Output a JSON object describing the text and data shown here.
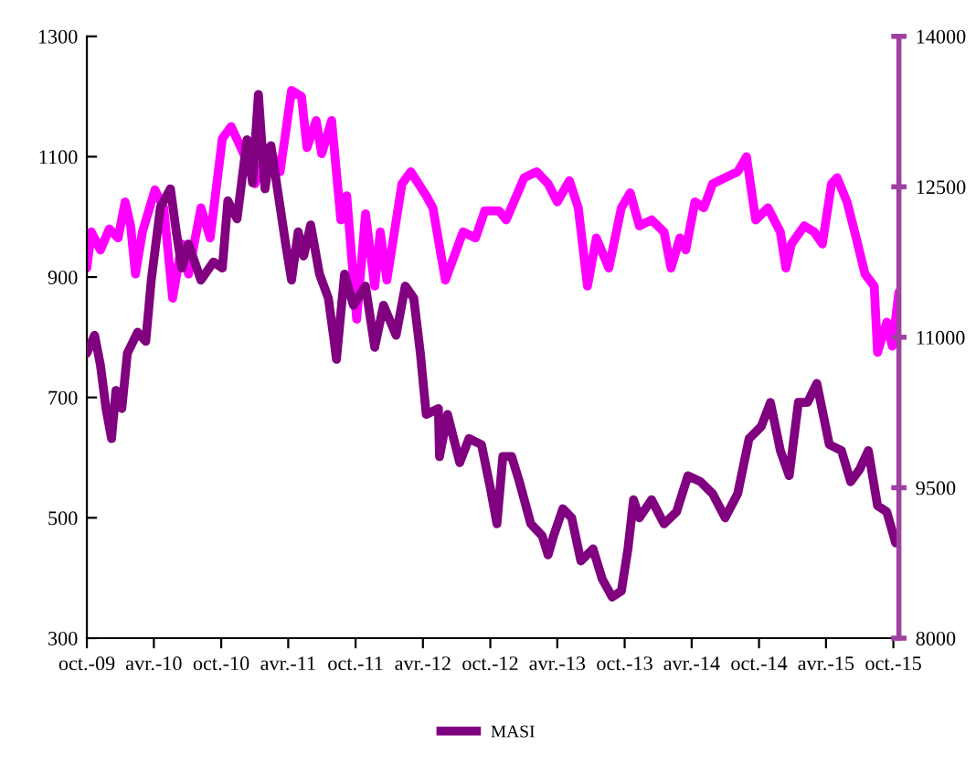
{
  "chart_data": {
    "type": "line",
    "xlim": [
      "2009-10-01",
      "2015-10-16"
    ],
    "xticks": [
      {
        "value": "2009-10-01",
        "label": "oct.-09"
      },
      {
        "value": "2010-04-01",
        "label": "avr.-10"
      },
      {
        "value": "2010-10-01",
        "label": "oct.-10"
      },
      {
        "value": "2011-04-01",
        "label": "avr.-11"
      },
      {
        "value": "2011-10-01",
        "label": "oct.-11"
      },
      {
        "value": "2012-04-01",
        "label": "avr.-12"
      },
      {
        "value": "2012-10-01",
        "label": "oct.-12"
      },
      {
        "value": "2013-04-01",
        "label": "avr.-13"
      },
      {
        "value": "2013-10-01",
        "label": "oct.-13"
      },
      {
        "value": "2014-04-01",
        "label": "avr.-14"
      },
      {
        "value": "2014-10-01",
        "label": "oct.-14"
      },
      {
        "value": "2015-04-01",
        "label": "avr.-15"
      },
      {
        "value": "2015-10-01",
        "label": "oct.-15"
      }
    ],
    "ylim": [
      300,
      1300
    ],
    "yticks": [
      300,
      500,
      700,
      900,
      1100,
      1300
    ],
    "y2lim": [
      8000,
      14000
    ],
    "y2ticks": [
      8000,
      9500,
      11000,
      12500,
      14000
    ],
    "grid": false,
    "legend": "bottom",
    "marker": "none",
    "line_style": "solid",
    "series": [
      {
        "color": "#ff00ff",
        "x": [
          "2009-10-01",
          "2009-10-13",
          "2009-11-07",
          "2009-12-01",
          "2009-12-25",
          "2010-01-13",
          "2010-01-28",
          "2010-02-10",
          "2010-03-01",
          "2010-04-04",
          "2010-04-28",
          "2010-05-22",
          "2010-06-16",
          "2010-07-04",
          "2010-08-07",
          "2010-09-01",
          "2010-10-04",
          "2010-10-28",
          "2010-12-01",
          "2011-01-01",
          "2011-02-07",
          "2011-03-10",
          "2011-04-10",
          "2011-05-07",
          "2011-05-22",
          "2011-06-16",
          "2011-07-01",
          "2011-07-28",
          "2011-08-22",
          "2011-09-07",
          "2011-10-04",
          "2011-10-28",
          "2011-11-22",
          "2011-12-07",
          "2011-12-25",
          "2012-02-04",
          "2012-02-28",
          "2012-04-10",
          "2012-04-28",
          "2012-06-01",
          "2012-06-25",
          "2012-07-19",
          "2012-08-22",
          "2012-09-16",
          "2012-10-25",
          "2012-11-13",
          "2013-01-01",
          "2013-02-04",
          "2013-03-07",
          "2013-04-01",
          "2013-05-04",
          "2013-05-28",
          "2013-06-22",
          "2013-07-16",
          "2013-08-19",
          "2013-09-22",
          "2013-10-16",
          "2013-11-10",
          "2013-12-13",
          "2014-01-16",
          "2014-02-04",
          "2014-02-28",
          "2014-03-16",
          "2014-04-10",
          "2014-05-04",
          "2014-05-28",
          "2014-07-01",
          "2014-08-04",
          "2014-08-28",
          "2014-09-22",
          "2014-10-25",
          "2014-11-28",
          "2014-12-13",
          "2014-12-28",
          "2015-02-01",
          "2015-02-28",
          "2015-03-22",
          "2015-04-16",
          "2015-05-01",
          "2015-05-28",
          "2015-06-22",
          "2015-07-16",
          "2015-08-10",
          "2015-08-19",
          "2015-09-13",
          "2015-09-28",
          "2015-10-16"
        ],
        "values": [
          915,
          975,
          945,
          980,
          965,
          1025,
          985,
          905,
          975,
          1045,
          1015,
          865,
          955,
          905,
          1015,
          965,
          1130,
          1150,
          1105,
          1055,
          1115,
          1075,
          1210,
          1200,
          1115,
          1160,
          1105,
          1160,
          995,
          1035,
          830,
          1005,
          885,
          975,
          895,
          1055,
          1075,
          1035,
          1015,
          895,
          935,
          975,
          965,
          1010,
          1010,
          995,
          1065,
          1075,
          1055,
          1025,
          1060,
          1015,
          885,
          965,
          915,
          1015,
          1040,
          985,
          995,
          975,
          915,
          965,
          945,
          1025,
          1015,
          1055,
          1065,
          1075,
          1100,
          995,
          1015,
          975,
          915,
          955,
          985,
          975,
          955,
          1055,
          1065,
          1025,
          965,
          905,
          885,
          775,
          825,
          785,
          875
        ]
      },
      {
        "name": "MASI",
        "color": "#800080",
        "axis": "y2",
        "x": [
          "2009-10-01",
          "2009-10-22",
          "2009-11-07",
          "2009-11-22",
          "2009-12-07",
          "2009-12-19",
          "2010-01-04",
          "2010-01-19",
          "2010-02-16",
          "2010-03-10",
          "2010-03-25",
          "2010-04-19",
          "2010-05-16",
          "2010-06-01",
          "2010-06-16",
          "2010-07-04",
          "2010-08-07",
          "2010-09-10",
          "2010-10-04",
          "2010-10-19",
          "2010-11-13",
          "2010-12-10",
          "2010-12-25",
          "2011-01-10",
          "2011-01-28",
          "2011-02-13",
          "2011-03-10",
          "2011-03-25",
          "2011-04-10",
          "2011-04-28",
          "2011-05-13",
          "2011-06-01",
          "2011-06-25",
          "2011-07-19",
          "2011-08-04",
          "2011-08-10",
          "2011-09-01",
          "2011-09-25",
          "2011-10-28",
          "2011-11-22",
          "2011-12-16",
          "2012-01-19",
          "2012-02-13",
          "2012-03-07",
          "2012-03-25",
          "2012-04-10",
          "2012-05-13",
          "2012-05-16",
          "2012-06-07",
          "2012-07-10",
          "2012-08-04",
          "2012-09-07",
          "2012-10-01",
          "2012-10-19",
          "2012-11-04",
          "2012-11-28",
          "2012-12-19",
          "2013-01-19",
          "2013-02-19",
          "2013-03-07",
          "2013-03-22",
          "2013-04-16",
          "2013-05-10",
          "2013-06-04",
          "2013-07-07",
          "2013-08-01",
          "2013-08-28",
          "2013-09-22",
          "2013-10-10",
          "2013-10-25",
          "2013-11-10",
          "2013-12-13",
          "2014-01-16",
          "2014-02-19",
          "2014-03-22",
          "2014-04-25",
          "2014-05-28",
          "2014-07-01",
          "2014-08-04",
          "2014-09-04",
          "2014-10-07",
          "2014-11-01",
          "2014-11-28",
          "2014-12-22",
          "2015-01-16",
          "2015-02-10",
          "2015-03-07",
          "2015-04-10",
          "2015-05-13",
          "2015-06-07",
          "2015-07-01",
          "2015-07-25",
          "2015-08-19",
          "2015-09-13",
          "2015-10-07"
        ],
        "values": [
          10840,
          11020,
          10720,
          10290,
          9990,
          10470,
          10290,
          10840,
          11050,
          10960,
          11570,
          12300,
          12480,
          12050,
          11690,
          11930,
          11570,
          11750,
          11690,
          12360,
          12180,
          12970,
          12540,
          13420,
          12480,
          12910,
          12300,
          11930,
          11570,
          12050,
          11810,
          12120,
          11630,
          11390,
          10960,
          10780,
          11630,
          11320,
          11510,
          10900,
          11320,
          11020,
          11510,
          11390,
          10840,
          10230,
          10290,
          9810,
          10230,
          9750,
          9990,
          9930,
          9500,
          9140,
          9810,
          9810,
          9560,
          9140,
          9020,
          8830,
          9020,
          9290,
          9200,
          8770,
          8890,
          8590,
          8410,
          8470,
          8890,
          9380,
          9200,
          9380,
          9140,
          9260,
          9620,
          9560,
          9440,
          9200,
          9440,
          9990,
          10110,
          10350,
          9870,
          9620,
          10350,
          10350,
          10540,
          9930,
          9870,
          9560,
          9680,
          9870,
          9320,
          9260,
          8950
        ]
      }
    ]
  }
}
